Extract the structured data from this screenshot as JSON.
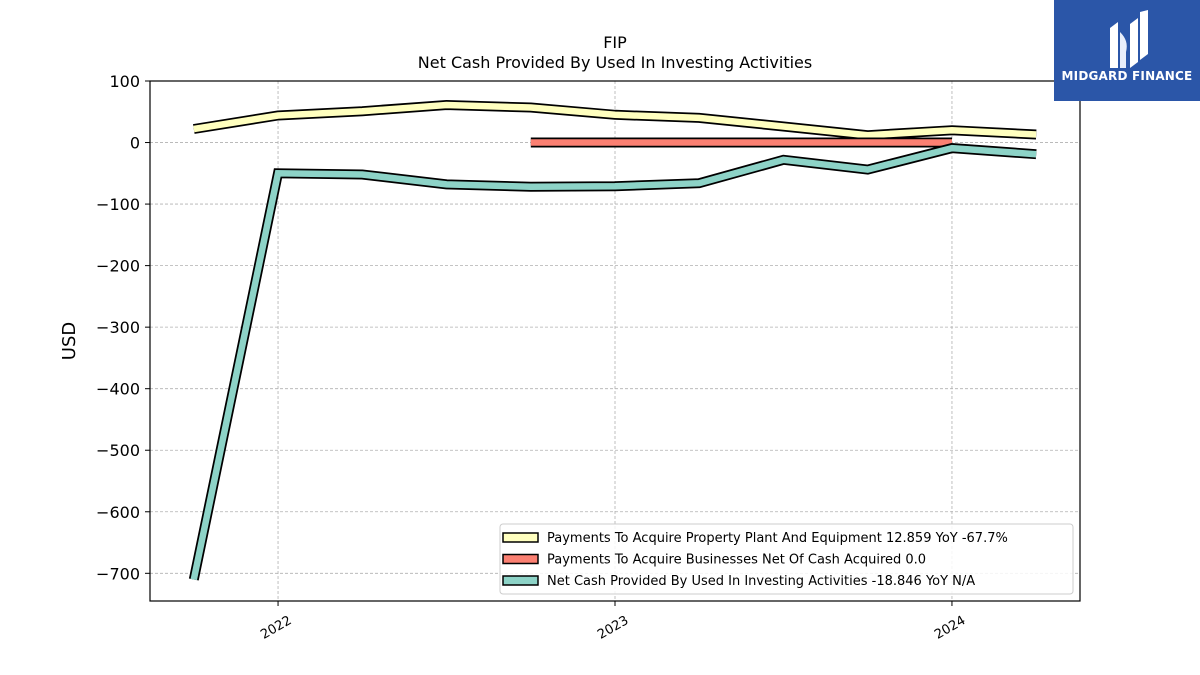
{
  "brand": {
    "name": "MIDGARD FINANCE"
  },
  "chart_data": {
    "type": "line",
    "title": "FIP",
    "subtitle": "Net Cash Provided By Used In Investing Activities",
    "ylabel": "USD",
    "xlabel": "",
    "ylim": [
      -745,
      100
    ],
    "xlim": [
      2021.62,
      2024.38
    ],
    "yticks": [
      100,
      0,
      -100,
      -200,
      -300,
      -400,
      -500,
      -600,
      -700
    ],
    "ytick_labels": [
      "100",
      "0",
      "−100",
      "−200",
      "−300",
      "−400",
      "−500",
      "−600",
      "−700"
    ],
    "xticks": [
      2022,
      2023,
      2024
    ],
    "xtick_labels": [
      "2022",
      "2023",
      "2024"
    ],
    "grid": true,
    "legend_position": "lower-right",
    "series": [
      {
        "name": "Payments To Acquire Property Plant And Equipment",
        "legend": "Payments To Acquire Property Plant And Equipment  12.859 YoY -67.7%",
        "color": "#ffffbf",
        "x": [
          2021.75,
          2022.0,
          2022.25,
          2022.5,
          2022.75,
          2023.0,
          2023.25,
          2023.5,
          2023.75,
          2024.0,
          2024.25
        ],
        "y": [
          22,
          44,
          51,
          61,
          57,
          45,
          40,
          26,
          12,
          20,
          13
        ]
      },
      {
        "name": "Payments To Acquire Businesses Net Of Cash Acquired",
        "legend": "Payments To Acquire Businesses Net Of Cash Acquired  0.0",
        "color": "#fb8072",
        "x": [
          2022.75,
          2023.0,
          2023.25,
          2023.5,
          2023.75,
          2024.0
        ],
        "y": [
          0,
          0,
          0,
          0,
          0,
          0
        ]
      },
      {
        "name": "Net Cash Provided By Used In Investing Activities",
        "legend": "Net Cash Provided By Used In Investing Activities  -18.846 YoY N/A",
        "color": "#8dd3c7",
        "x": [
          2021.75,
          2022.0,
          2022.25,
          2022.5,
          2022.75,
          2023.0,
          2023.25,
          2023.5,
          2023.75,
          2024.0,
          2024.25
        ],
        "y": [
          -710,
          -50,
          -52,
          -68,
          -72,
          -71,
          -66,
          -28,
          -44,
          -9,
          -19
        ]
      }
    ]
  }
}
